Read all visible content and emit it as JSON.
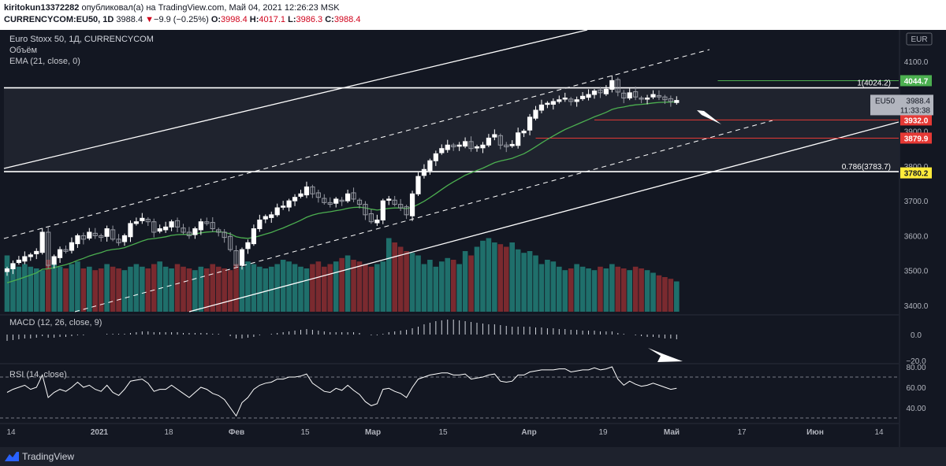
{
  "header": {
    "user": "kiritokun13372282",
    "published_text": "опубликовал(а) на TradingView.com, Май 04, 2021 12:26:23 MSK",
    "symbol": "CURRENCYCOM:EU50, 1D",
    "price": "3988.4",
    "change_arrow": "▼",
    "change": "−9.9 (−0.25%)",
    "o_label": "O:",
    "o_value": "3998.4",
    "h_label": "H:",
    "h_value": "4017.1",
    "l_label": "L:",
    "l_value": "3986.3",
    "c_label": "C:",
    "c_value": "3988.4"
  },
  "legend": {
    "title": "Euro Stoxx 50, 1Д, CURRENCYCOM",
    "volume": "Объём",
    "ema": "EMA (21, close, 0)",
    "macd": "MACD (12, 26, close, 9)",
    "rsi": "RSI (14, close)"
  },
  "currency_badge": "EUR",
  "price_labels": [
    {
      "text": "4044.7",
      "value": 4044.7,
      "color": "#4caf50",
      "line_start_bar": 121
    },
    {
      "text": "3932.0",
      "value": 3932.0,
      "color": "#e53935",
      "line_start_bar": 100
    },
    {
      "text": "3879.9",
      "value": 3879.9,
      "color": "#e53935",
      "line_start_bar": 90
    },
    {
      "text": "3780.2",
      "value": 3780.2,
      "color": "#ffeb3b",
      "line_start_bar": 0
    }
  ],
  "current_price_label": {
    "symbol": "EU50",
    "price": "3988.4",
    "value": 3988.4,
    "countdown": "11:33:38"
  },
  "fib_labels": [
    {
      "text": "1(4024.2)",
      "value": 4024.2
    },
    {
      "text": "0.786(3783.7)",
      "value": 3783.7
    }
  ],
  "colors": {
    "up": "#26a69a",
    "down": "#ef5350",
    "candle_up": "#ffffff",
    "candle_down": "#9598a1",
    "ema": "#4caf50",
    "lines": "#ffffff",
    "vol_up": "#1f6f6b",
    "vol_down": "#7a2a2f"
  },
  "chart_data": {
    "type": "candlestick",
    "y_axis": {
      "ticks": [
        "4100.0",
        "3900.0",
        "3800.0",
        "3700.0",
        "3600.0",
        "3500.0",
        "3400.0"
      ],
      "ylim": [
        3375,
        4165
      ]
    },
    "x_axis": {
      "ticks": [
        "14",
        "2021",
        "18",
        "Фев",
        "15",
        "Мар",
        "15",
        "Апр",
        "19",
        "Май",
        "17",
        "Июн",
        "14"
      ]
    },
    "macd_axis": {
      "ticks": [
        "0.0",
        "−20.0"
      ]
    },
    "rsi_axis": {
      "ticks": [
        "80.00",
        "60.00",
        "40.00"
      ],
      "levels": [
        70,
        30
      ]
    },
    "close": [
      3505,
      3520,
      3530,
      3540,
      3545,
      3555,
      3610,
      3515,
      3540,
      3560,
      3555,
      3580,
      3600,
      3590,
      3610,
      3600,
      3595,
      3620,
      3590,
      3580,
      3600,
      3635,
      3640,
      3650,
      3640,
      3610,
      3620,
      3625,
      3640,
      3625,
      3610,
      3600,
      3620,
      3640,
      3635,
      3620,
      3610,
      3595,
      3560,
      3515,
      3560,
      3580,
      3620,
      3645,
      3655,
      3660,
      3680,
      3685,
      3700,
      3710,
      3720,
      3740,
      3720,
      3710,
      3695,
      3690,
      3705,
      3700,
      3720,
      3705,
      3690,
      3660,
      3640,
      3645,
      3700,
      3705,
      3690,
      3680,
      3660,
      3720,
      3770,
      3790,
      3815,
      3835,
      3850,
      3860,
      3855,
      3860,
      3870,
      3850,
      3855,
      3860,
      3880,
      3890,
      3860,
      3855,
      3862,
      3895,
      3900,
      3940,
      3960,
      3975,
      3980,
      3985,
      3990,
      3995,
      3985,
      3990,
      4000,
      4005,
      4015,
      4010,
      4020,
      4045,
      4012,
      3995,
      4010,
      3998,
      3992,
      3995,
      4005,
      3998,
      3990,
      3985,
      3988
    ],
    "volume": [
      65,
      55,
      52,
      55,
      52,
      50,
      48,
      60,
      55,
      52,
      50,
      55,
      58,
      50,
      52,
      48,
      50,
      55,
      52,
      50,
      48,
      52,
      55,
      52,
      50,
      55,
      58,
      52,
      50,
      55,
      52,
      50,
      48,
      52,
      50,
      55,
      52,
      50,
      48,
      55,
      52,
      58,
      55,
      52,
      50,
      52,
      55,
      60,
      58,
      55,
      52,
      50,
      55,
      58,
      52,
      55,
      58,
      62,
      65,
      60,
      58,
      55,
      52,
      55,
      58,
      85,
      80,
      75,
      70,
      68,
      65,
      55,
      60,
      52,
      58,
      62,
      60,
      55,
      70,
      65,
      75,
      82,
      85,
      80,
      78,
      75,
      80,
      72,
      68,
      70,
      65,
      55,
      60,
      58,
      52,
      48,
      50,
      55,
      52,
      50,
      48,
      52,
      50,
      55,
      52,
      50,
      48,
      52,
      50,
      48,
      45,
      42,
      40,
      38,
      35
    ],
    "rsi": [
      55,
      58,
      60,
      62,
      58,
      60,
      72,
      50,
      55,
      58,
      56,
      60,
      65,
      60,
      62,
      58,
      56,
      62,
      55,
      52,
      58,
      66,
      67,
      68,
      64,
      56,
      58,
      58,
      62,
      58,
      54,
      50,
      55,
      60,
      58,
      54,
      52,
      48,
      40,
      32,
      45,
      50,
      58,
      62,
      64,
      65,
      68,
      68,
      70,
      70,
      71,
      73,
      64,
      60,
      56,
      55,
      59,
      57,
      62,
      57,
      53,
      46,
      42,
      44,
      58,
      59,
      56,
      54,
      50,
      60,
      68,
      70,
      72,
      73,
      74,
      74,
      72,
      72,
      73,
      68,
      69,
      70,
      72,
      73,
      66,
      65,
      66,
      72,
      72,
      75,
      76,
      77,
      77,
      77,
      78,
      78,
      75,
      76,
      77,
      77,
      79,
      77,
      78,
      80,
      68,
      62,
      66,
      63,
      61,
      62,
      64,
      62,
      60,
      58,
      59
    ],
    "macd": [
      -8,
      -7,
      -6,
      -5,
      -5,
      -4,
      -2,
      -4,
      -4,
      -3,
      -3,
      -2,
      -1,
      -1,
      0,
      0,
      0,
      1,
      1,
      1,
      1,
      2,
      3,
      4,
      4,
      3,
      3,
      3,
      3,
      3,
      2,
      2,
      2,
      2,
      2,
      1,
      1,
      0,
      -2,
      -5,
      -5,
      -4,
      -3,
      -1,
      0,
      1,
      2,
      3,
      4,
      5,
      6,
      7,
      6,
      5,
      4,
      3,
      3,
      3,
      3,
      3,
      2,
      0,
      -1,
      -1,
      1,
      3,
      4,
      5,
      6,
      8,
      10,
      13,
      15,
      17,
      18,
      19,
      19,
      18,
      17,
      16,
      15,
      14,
      13,
      13,
      12,
      11,
      10,
      10,
      10,
      10,
      9,
      9,
      8,
      8,
      7,
      7,
      6,
      6,
      5,
      5,
      5,
      4,
      4,
      4,
      2,
      1,
      0,
      -1,
      -2,
      -3,
      -3,
      -4,
      -5,
      -5,
      -6
    ]
  }
}
